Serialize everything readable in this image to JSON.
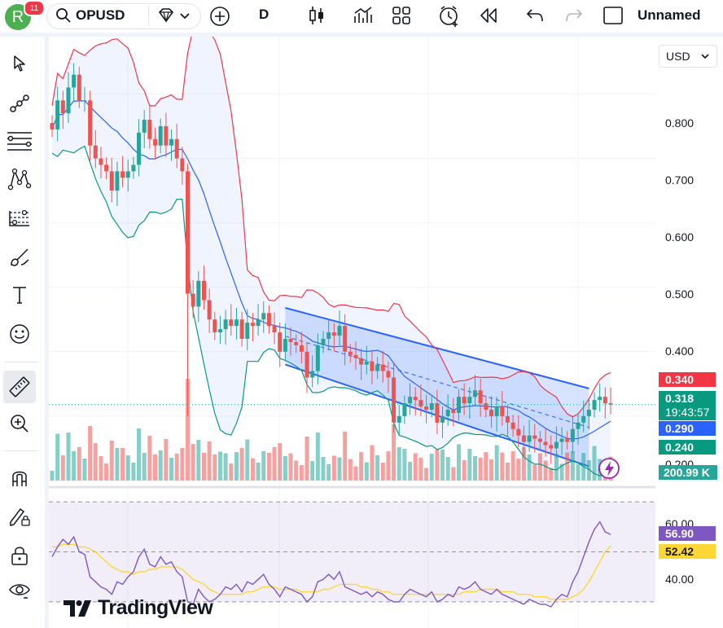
{
  "header": {
    "avatar_letter": "R",
    "notification_count": "11",
    "symbol": "OPUSD",
    "interval": "D",
    "layout_name": "Unnamed"
  },
  "price_scale": {
    "currency": "USD",
    "ticks": [
      "0.800",
      "0.700",
      "0.600",
      "0.500",
      "0.400",
      "0.200"
    ],
    "tags": {
      "bb_upper": "0.340",
      "last_price": "0.318",
      "countdown": "19:43:57",
      "bb_basis": "0.290",
      "bb_lower": "0.240",
      "volume": "200.99 K"
    }
  },
  "rsi_scale": {
    "ticks": [
      "60.00",
      "40.00"
    ],
    "tags": {
      "rsi": "56.90",
      "rsi_ma": "52.42"
    }
  },
  "branding": {
    "logo_text": "TradingView"
  },
  "colors": {
    "up": "#26a69a",
    "down": "#ef5350",
    "bb_upper": "#f23645",
    "bb_basis": "#2962ff",
    "bb_lower": "#089981",
    "rsi": "#7e57c2",
    "rsi_ma": "#fdd835",
    "channel": "#2962ff"
  },
  "chart_data": {
    "type": "candlestick",
    "symbol": "OPUSD",
    "ylim": [
      0.2,
      0.87
    ],
    "close": [
      0.745,
      0.79,
      0.77,
      0.81,
      0.83,
      0.79,
      0.79,
      0.72,
      0.7,
      0.69,
      0.68,
      0.65,
      0.68,
      0.67,
      0.68,
      0.69,
      0.74,
      0.76,
      0.73,
      0.72,
      0.75,
      0.72,
      0.73,
      0.7,
      0.68,
      0.49,
      0.47,
      0.51,
      0.48,
      0.45,
      0.43,
      0.435,
      0.45,
      0.44,
      0.45,
      0.42,
      0.445,
      0.44,
      0.45,
      0.46,
      0.44,
      0.43,
      0.4,
      0.42,
      0.415,
      0.41,
      0.4,
      0.36,
      0.37,
      0.41,
      0.42,
      0.43,
      0.425,
      0.44,
      0.4,
      0.395,
      0.39,
      0.38,
      0.385,
      0.37,
      0.38,
      0.37,
      0.36,
      0.29,
      0.3,
      0.32,
      0.33,
      0.325,
      0.315,
      0.31,
      0.32,
      0.29,
      0.3,
      0.31,
      0.305,
      0.33,
      0.32,
      0.33,
      0.34,
      0.32,
      0.31,
      0.3,
      0.315,
      0.3,
      0.29,
      0.28,
      0.27,
      0.26,
      0.27,
      0.265,
      0.26,
      0.255,
      0.25,
      0.26,
      0.265,
      0.26,
      0.28,
      0.29,
      0.3,
      0.31,
      0.325,
      0.33,
      0.32,
      0.318
    ],
    "rsi_ylim": [
      28,
      72
    ],
    "rsi_reference_levels": [
      70,
      50,
      30
    ],
    "rsi": [
      48,
      52,
      55,
      53,
      56,
      50,
      49,
      40,
      38,
      36,
      35,
      33,
      38,
      37,
      40,
      42,
      48,
      51,
      45,
      44,
      48,
      45,
      46,
      42,
      40,
      30,
      29,
      35,
      32,
      30,
      31,
      33,
      36,
      35,
      37,
      34,
      38,
      37,
      39,
      41,
      37,
      35,
      32,
      36,
      35,
      34,
      33,
      30,
      32,
      38,
      39,
      41,
      39,
      42,
      36,
      35,
      34,
      33,
      34,
      32,
      34,
      33,
      31,
      30,
      30,
      33,
      35,
      34,
      33,
      32,
      34,
      30,
      31,
      33,
      32,
      36,
      35,
      36,
      38,
      35,
      34,
      33,
      35,
      33,
      32,
      31,
      30,
      29,
      31,
      30,
      29,
      29,
      28,
      31,
      33,
      32,
      38,
      42,
      48,
      54,
      59,
      62,
      58,
      56.9
    ],
    "rsi_ma": [
      52,
      52,
      53,
      53,
      53,
      52,
      52,
      51,
      50,
      48,
      46,
      44,
      43,
      42,
      42,
      41,
      42,
      42,
      43,
      43,
      44,
      44,
      44,
      44,
      43,
      41,
      39,
      38,
      37,
      35,
      34,
      33,
      33,
      33,
      33,
      33,
      34,
      34,
      35,
      36,
      36,
      36,
      35,
      35,
      35,
      35,
      34,
      34,
      34,
      34,
      35,
      35,
      36,
      37,
      37,
      37,
      37,
      36,
      36,
      35,
      35,
      34,
      34,
      33,
      33,
      33,
      33,
      33,
      33,
      33,
      33,
      33,
      33,
      33,
      33,
      33,
      34,
      34,
      34,
      35,
      35,
      35,
      35,
      34,
      34,
      34,
      33,
      33,
      33,
      32,
      32,
      32,
      31,
      31,
      31,
      31,
      32,
      33,
      35,
      38,
      42,
      46,
      50,
      52.42
    ]
  }
}
